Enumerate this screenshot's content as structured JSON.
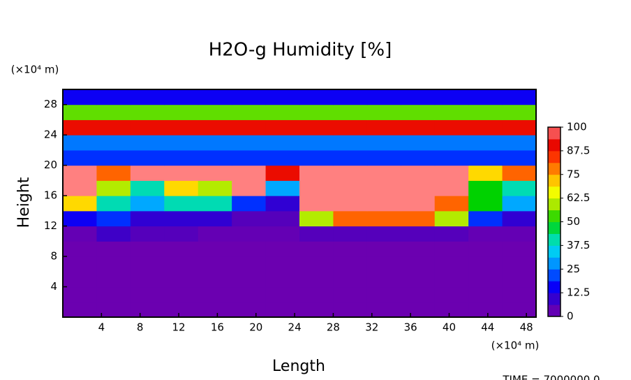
{
  "chart_data": {
    "type": "heatmap",
    "title": "H2O-g Humidity [%]",
    "x_label": "Length",
    "y_label": "Height",
    "x_unit": "(×10⁴ m)",
    "y_unit": "(×10⁴ m)",
    "footer": "TIME = 7000000.0",
    "xlim": [
      0,
      49
    ],
    "ylim": [
      0,
      30
    ],
    "xticks": [
      4,
      8,
      12,
      16,
      20,
      24,
      28,
      32,
      36,
      40,
      44,
      48
    ],
    "yticks": [
      4,
      8,
      12,
      16,
      20,
      24,
      28
    ],
    "x": [
      1.75,
      5.25,
      8.75,
      12.25,
      15.75,
      19.25,
      22.75,
      26.25,
      29.75,
      33.25,
      36.75,
      40.25,
      43.75,
      47.25
    ],
    "y": [
      1,
      3,
      5,
      7,
      9,
      11,
      13,
      15,
      17,
      19,
      21,
      23,
      25,
      27,
      29
    ],
    "z": [
      [
        2,
        2,
        2,
        2,
        2,
        2,
        2,
        2,
        2,
        2,
        2,
        2,
        2,
        2
      ],
      [
        2,
        2,
        2,
        2,
        2,
        2,
        2,
        2,
        2,
        2,
        2,
        2,
        2,
        2
      ],
      [
        2,
        2,
        2,
        2,
        2,
        2,
        2,
        2,
        2,
        2,
        2,
        2,
        2,
        2
      ],
      [
        2,
        2,
        2,
        2,
        2,
        2,
        2,
        2,
        2,
        2,
        2,
        2,
        2,
        2
      ],
      [
        2,
        2,
        2,
        2,
        2,
        2,
        2,
        2,
        2,
        2,
        2,
        2,
        2,
        2
      ],
      [
        3,
        8,
        5,
        5,
        3,
        3,
        3,
        5,
        5,
        5,
        5,
        5,
        3,
        3
      ],
      [
        15,
        20,
        10,
        10,
        10,
        5,
        5,
        60,
        80,
        80,
        80,
        60,
        20,
        10
      ],
      [
        70,
        40,
        30,
        40,
        40,
        20,
        10,
        100,
        100,
        100,
        100,
        80,
        50,
        30
      ],
      [
        100,
        60,
        40,
        70,
        60,
        100,
        30,
        100,
        100,
        100,
        100,
        100,
        50,
        40
      ],
      [
        100,
        80,
        100,
        100,
        100,
        100,
        90,
        100,
        100,
        100,
        100,
        100,
        70,
        80
      ],
      [
        20,
        20,
        20,
        20,
        20,
        20,
        20,
        20,
        20,
        20,
        20,
        20,
        20,
        20
      ],
      [
        25,
        25,
        25,
        25,
        25,
        25,
        25,
        25,
        25,
        25,
        25,
        25,
        25,
        25
      ],
      [
        90,
        90,
        90,
        90,
        90,
        90,
        90,
        90,
        90,
        90,
        90,
        90,
        90,
        90
      ],
      [
        55,
        55,
        55,
        55,
        55,
        55,
        55,
        55,
        55,
        55,
        55,
        55,
        55,
        55
      ],
      [
        15,
        15,
        15,
        15,
        15,
        15,
        15,
        15,
        15,
        15,
        15,
        15,
        15,
        15
      ]
    ],
    "zlim": [
      0,
      100
    ],
    "zticks": [
      0,
      12.5,
      25,
      37.5,
      50,
      62.5,
      75,
      87.5,
      100
    ],
    "colormap": [
      "#7a00a8",
      "#3c00c8",
      "#0000ff",
      "#0078ff",
      "#00c8ff",
      "#00e0a0",
      "#00d200",
      "#a0e600",
      "#ffff00",
      "#ffa000",
      "#ff3c00",
      "#e60000",
      "#ff8080"
    ]
  }
}
